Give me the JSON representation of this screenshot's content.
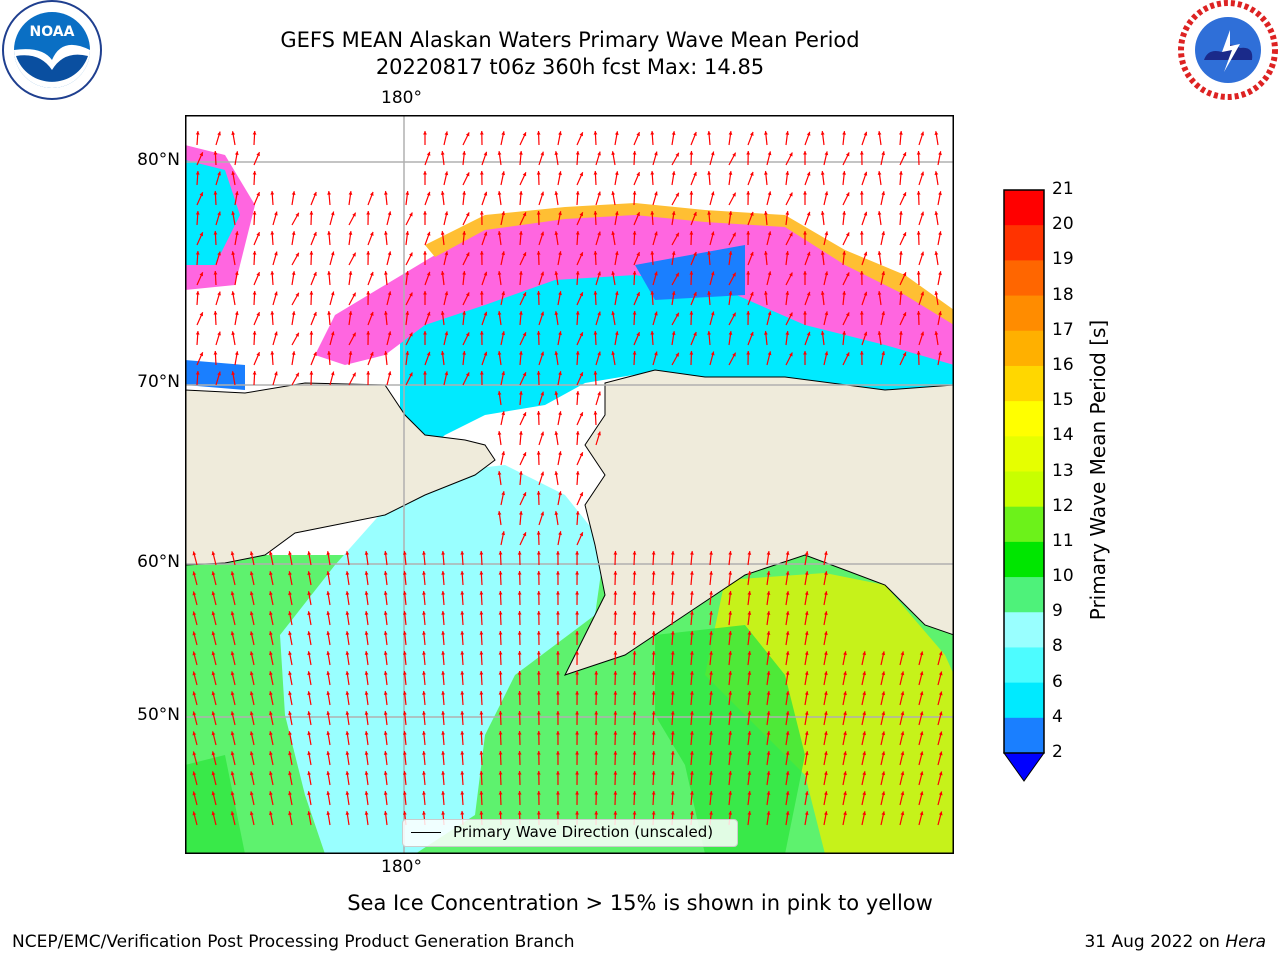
{
  "header": {
    "title_line1": "GEFS MEAN Alaskan Waters Primary Wave Mean Period",
    "title_line2": "20220817 t06z 360h fcst   Max: 14.85"
  },
  "logos": {
    "left": "noaa-logo",
    "right": "nws-logo"
  },
  "map": {
    "lon_label_top": "180°",
    "lon_label_bottom": "180°",
    "lat_labels": [
      "80°N",
      "70°N",
      "60°N",
      "50°N"
    ],
    "colors": {
      "land": "#efebdb",
      "ocean_cyan": "#00eaff",
      "ocean_lightcyan": "#99ffff",
      "ocean_green": "#5ef26e",
      "ocean_yellowgreen": "#c6f21a",
      "ice_pink": "#ff66e0",
      "ice_orange": "#ffbf33",
      "ice_blue": "#1a7fff",
      "arrow": "#ff0000",
      "grid": "#b0b0b0"
    }
  },
  "legend": {
    "label": "Primary Wave Direction (unscaled)"
  },
  "colorbar": {
    "title": "Primary Wave Mean Period [s]",
    "ticks": [
      "21",
      "20",
      "19",
      "18",
      "17",
      "16",
      "15",
      "14",
      "13",
      "12",
      "11",
      "10",
      "9",
      "8",
      "6",
      "4",
      "2"
    ],
    "colors": [
      "#ff0000",
      "#ff3300",
      "#ff6600",
      "#ff8c00",
      "#ffb000",
      "#ffd700",
      "#ffff00",
      "#e6ff00",
      "#c8ff00",
      "#6cf21a",
      "#00e600",
      "#4ef27a",
      "#99ffff",
      "#4dfcff",
      "#00eaff",
      "#1a7fff",
      "#0000ff"
    ]
  },
  "notes": {
    "ice": "Sea Ice Concentration > 15% is shown in pink to yellow"
  },
  "footer": {
    "left": "NCEP/EMC/Verification Post Processing Product Generation Branch",
    "right_date": "31 Aug 2022 on ",
    "right_machine": "Hera"
  }
}
